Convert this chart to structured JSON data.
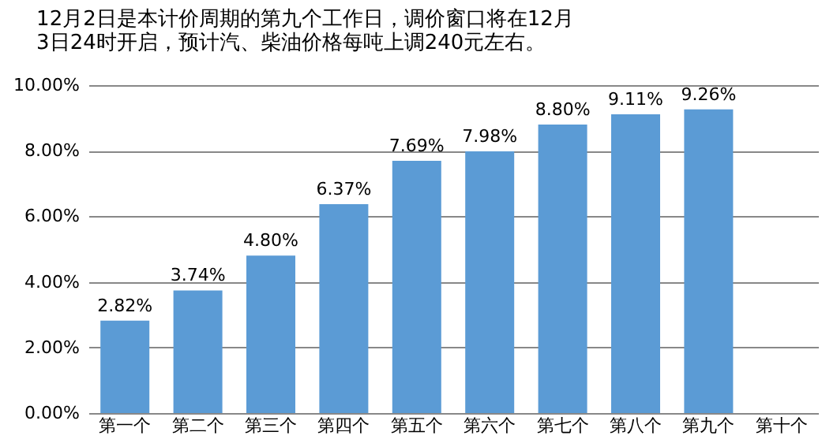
{
  "chart_data": {
    "type": "bar",
    "title": "12月2日是本计价周期的第九个工作日，调价窗口将在12月\n3日24时开启，预计汽、柴油价格每吨上调240元左右。",
    "categories": [
      "第一个",
      "第二个",
      "第三个",
      "第四个",
      "第五个",
      "第六个",
      "第七个",
      "第八个",
      "第九个",
      "第十个"
    ],
    "values": [
      2.82,
      3.74,
      4.8,
      6.37,
      7.69,
      7.98,
      8.8,
      9.11,
      9.26,
      null
    ],
    "value_labels": [
      "2.82%",
      "3.74%",
      "4.80%",
      "6.37%",
      "7.69%",
      "7.98%",
      "8.80%",
      "9.11%",
      "9.26%",
      null
    ],
    "color": "#5b9bd5",
    "ylim": [
      0,
      10
    ],
    "yticks": [
      {
        "value": 0,
        "label": "0.00%"
      },
      {
        "value": 2,
        "label": "2.00%"
      },
      {
        "value": 4,
        "label": "4.00%"
      },
      {
        "value": 6,
        "label": "6.00%"
      },
      {
        "value": 8,
        "label": "8.00%"
      },
      {
        "value": 10,
        "label": "10.00%"
      }
    ],
    "grid": "y"
  }
}
